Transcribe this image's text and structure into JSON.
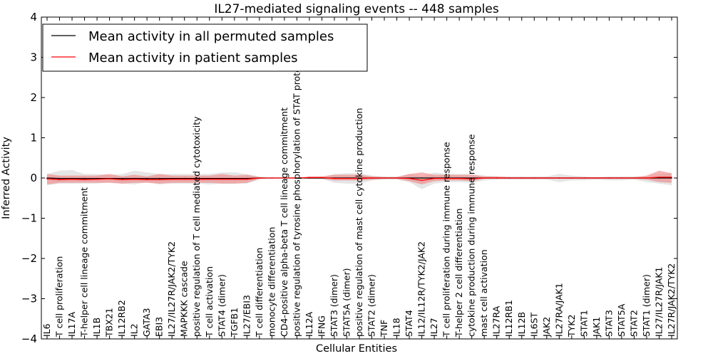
{
  "chart_data": {
    "type": "line",
    "title": "IL27-mediated signaling events -- 448 samples",
    "xlabel": "Cellular Entities",
    "ylabel": "Inferred Activity",
    "ylim": [
      -4,
      4
    ],
    "yticks": [
      -4,
      -3,
      -2,
      -1,
      0,
      1,
      2,
      3,
      4
    ],
    "ytick_labels": [
      "−4",
      "−3",
      "−2",
      "−1",
      "0",
      "1",
      "2",
      "3",
      "4"
    ],
    "grid": false,
    "legend_position": "top-left",
    "categories": [
      "IL6",
      "T cell proliferation",
      "IL17A",
      "T-helper cell lineage commitment",
      "IL1B",
      "TBX21",
      "IL12RB2",
      "IL2",
      "GATA3",
      "EBI3",
      "IL27/IL27R/JAK2/TYK2",
      "MAPKKK cascade",
      "positive regulation of T cell mediated cytotoxicity",
      "T cell activation",
      "STAT4 (dimer)",
      "TGFB1",
      "IL27/EBI3",
      "T cell differentiation",
      "monocyte differentiation",
      "CD4-positive alpha-beta T cell lineage commitment",
      "positive regulation of tyrosine phosphorylation of STAT protein",
      "IL12A",
      "IFNG",
      "STAT3 (dimer)",
      "STAT5A (dimer)",
      "positive regulation of mast cell cytokine production",
      "STAT2 (dimer)",
      "TNF",
      "IL18",
      "STAT4",
      "IL12/IL12R/TYK2/JAK2",
      "IL27",
      "T cell proliferation during immune response",
      "T-helper 2 cell differentiation",
      "cytokine production during immune response",
      "mast cell activation",
      "IL27RA",
      "IL12RB1",
      "IL12B",
      "IL6ST",
      "JAK2",
      "IL27RA/JAK1",
      "TYK2",
      "STAT1",
      "JAK1",
      "STAT3",
      "STAT5A",
      "STAT2",
      "STAT1 (dimer)",
      "IL27/IL27R/JAK1",
      "IL27R/JAK2/TYK2"
    ],
    "series": [
      {
        "name": "Mean activity in all permuted samples",
        "color": "#000000",
        "band_color": "#bdbdbd",
        "values": [
          0.0,
          -0.01,
          -0.01,
          -0.01,
          -0.01,
          -0.01,
          -0.01,
          -0.01,
          -0.01,
          -0.01,
          -0.01,
          -0.01,
          -0.01,
          -0.01,
          -0.01,
          -0.01,
          -0.01,
          0.0,
          0.0,
          0.0,
          0.0,
          0.0,
          0.0,
          0.0,
          0.0,
          0.0,
          0.0,
          0.0,
          0.0,
          0.0,
          0.0,
          0.0,
          0.0,
          0.0,
          0.0,
          0.0,
          0.0,
          0.0,
          0.0,
          0.0,
          0.0,
          0.0,
          0.0,
          0.0,
          0.0,
          0.0,
          0.0,
          0.0,
          0.0,
          0.0,
          0.0
        ],
        "upper": [
          0.1,
          0.18,
          0.2,
          0.1,
          0.1,
          0.08,
          0.1,
          0.18,
          0.14,
          0.1,
          0.1,
          0.1,
          0.1,
          0.1,
          0.14,
          0.14,
          0.1,
          0.04,
          0.0,
          0.0,
          0.0,
          0.02,
          0.02,
          0.1,
          0.12,
          0.12,
          0.06,
          0.04,
          0.04,
          0.1,
          0.04,
          0.14,
          0.1,
          0.1,
          0.1,
          0.06,
          0.04,
          0.04,
          0.04,
          0.04,
          0.04,
          0.1,
          0.06,
          0.04,
          0.02,
          0.04,
          0.04,
          0.04,
          0.04,
          0.1,
          0.12
        ],
        "lower": [
          -0.18,
          -0.14,
          -0.14,
          -0.14,
          -0.14,
          -0.1,
          -0.14,
          -0.16,
          -0.1,
          -0.16,
          -0.14,
          -0.14,
          -0.14,
          -0.16,
          -0.14,
          -0.14,
          -0.14,
          -0.04,
          0.0,
          0.0,
          0.0,
          -0.02,
          -0.02,
          -0.12,
          -0.14,
          -0.14,
          -0.06,
          -0.04,
          -0.04,
          -0.1,
          -0.28,
          -0.14,
          -0.1,
          -0.1,
          -0.12,
          -0.06,
          -0.04,
          -0.04,
          -0.04,
          -0.04,
          -0.04,
          -0.1,
          -0.06,
          -0.06,
          -0.04,
          -0.06,
          -0.06,
          -0.04,
          -0.1,
          -0.14,
          -0.18
        ]
      },
      {
        "name": "Mean activity in patient samples",
        "color": "#ff0000",
        "band_color": "#f08080",
        "values": [
          -0.02,
          -0.04,
          -0.03,
          -0.04,
          -0.03,
          -0.02,
          -0.04,
          -0.03,
          -0.04,
          -0.04,
          -0.03,
          -0.03,
          -0.03,
          -0.03,
          -0.03,
          -0.03,
          -0.03,
          0.0,
          0.0,
          0.0,
          0.0,
          0.01,
          0.01,
          -0.01,
          -0.01,
          -0.01,
          0.0,
          0.0,
          0.0,
          -0.01,
          -0.06,
          -0.01,
          -0.01,
          -0.01,
          -0.02,
          0.0,
          0.0,
          0.0,
          0.0,
          0.0,
          0.0,
          0.0,
          0.0,
          0.0,
          0.0,
          0.0,
          0.0,
          0.0,
          0.0,
          0.02,
          0.02
        ],
        "upper": [
          0.1,
          0.06,
          0.06,
          0.06,
          0.06,
          0.1,
          0.04,
          0.08,
          0.04,
          0.1,
          0.06,
          0.06,
          0.06,
          0.06,
          0.1,
          0.06,
          0.08,
          0.02,
          0.0,
          0.0,
          0.0,
          0.04,
          0.04,
          0.08,
          0.08,
          0.08,
          0.04,
          0.02,
          0.02,
          0.1,
          0.14,
          0.08,
          0.08,
          0.08,
          0.08,
          0.04,
          0.04,
          0.02,
          0.02,
          0.02,
          0.02,
          0.02,
          0.02,
          0.02,
          0.02,
          0.02,
          0.02,
          0.02,
          0.06,
          0.18,
          0.12
        ],
        "lower": [
          -0.16,
          -0.12,
          -0.12,
          -0.12,
          -0.12,
          -0.12,
          -0.14,
          -0.12,
          -0.12,
          -0.14,
          -0.12,
          -0.12,
          -0.12,
          -0.12,
          -0.14,
          -0.14,
          -0.12,
          -0.02,
          0.0,
          0.0,
          0.0,
          -0.02,
          -0.02,
          -0.06,
          -0.06,
          -0.06,
          -0.04,
          -0.02,
          -0.02,
          -0.08,
          -0.16,
          -0.08,
          -0.06,
          -0.06,
          -0.08,
          -0.02,
          -0.02,
          -0.02,
          -0.02,
          -0.02,
          -0.02,
          -0.02,
          -0.02,
          -0.02,
          -0.02,
          -0.02,
          -0.02,
          -0.02,
          -0.04,
          -0.1,
          -0.12
        ]
      }
    ]
  }
}
